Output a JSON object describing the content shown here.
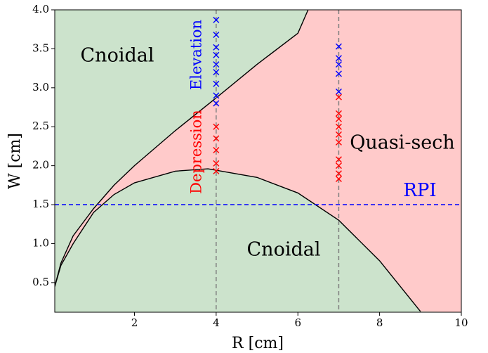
{
  "chart_data": {
    "type": "scatter",
    "xlabel": "R [cm]",
    "ylabel": "W [cm]",
    "xlim": [
      0.05,
      10
    ],
    "ylim": [
      0.12,
      4.0
    ],
    "xticks": [
      2,
      4,
      6,
      8,
      10
    ],
    "yticks": [
      0.5,
      {
        "value": 1.0,
        "label": "1.0"
      },
      1.5,
      {
        "value": 2.0,
        "label": "2.0"
      },
      2.5,
      {
        "value": 3.0,
        "label": "3.0"
      },
      3.5,
      {
        "value": 4.0,
        "label": "4.0"
      }
    ],
    "region_colors": {
      "cnoidal": "#cce3cc",
      "quasi_sech": "#ffcaca"
    },
    "boundaries": [
      {
        "color": "#000000",
        "x": [
          0.05,
          0.2,
          0.5,
          1,
          1.5,
          2,
          3,
          4,
          5,
          6,
          6.25
        ],
        "values": [
          0.45,
          0.75,
          1.1,
          1.45,
          1.75,
          2.0,
          2.45,
          2.87,
          3.3,
          3.7,
          4.0
        ]
      },
      {
        "color": "#000000",
        "x": [
          0.05,
          0.2,
          0.5,
          1,
          1.5,
          2,
          3,
          3.8,
          5,
          6,
          7,
          8,
          9
        ],
        "values": [
          0.45,
          0.72,
          1.0,
          1.4,
          1.63,
          1.78,
          1.93,
          1.96,
          1.85,
          1.65,
          1.3,
          0.78,
          0.13
        ]
      }
    ],
    "vlines": {
      "color": "#808080",
      "values": [
        4,
        7
      ]
    },
    "hline": {
      "label": "RPI",
      "color": "#0000ff",
      "value": 1.5
    },
    "series": [
      {
        "color": "#0000ff",
        "x": [
          4,
          4,
          4,
          4,
          4,
          4,
          4,
          4,
          4
        ],
        "values": [
          2.8,
          2.9,
          3.05,
          3.2,
          3.3,
          3.42,
          3.52,
          3.68,
          3.87
        ]
      },
      {
        "color": "#ff0000",
        "x": [
          4,
          4,
          4,
          4,
          4
        ],
        "values": [
          1.93,
          2.03,
          2.2,
          2.35,
          2.5
        ]
      },
      {
        "color": "#0000ff",
        "x": [
          7,
          7,
          7,
          7,
          7
        ],
        "values": [
          2.95,
          3.18,
          3.3,
          3.38,
          3.53
        ]
      },
      {
        "color": "#ff0000",
        "x": [
          7,
          7,
          7,
          7,
          7,
          7,
          7,
          7,
          7,
          7
        ],
        "values": [
          1.83,
          1.9,
          2.0,
          2.08,
          2.3,
          2.4,
          2.5,
          2.6,
          2.67,
          2.88
        ]
      }
    ],
    "annotations": [
      "Cnoidal",
      "Cnoidal",
      "Quasi-sech",
      "Elevation",
      "Depression"
    ]
  }
}
